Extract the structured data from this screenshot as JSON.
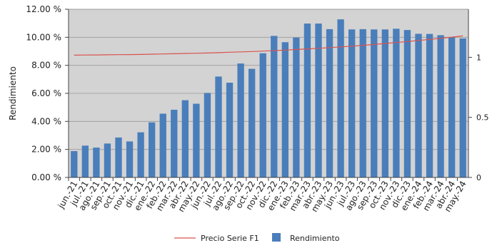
{
  "chart_data": {
    "type": "bar",
    "title": "",
    "xlabel": "",
    "ylabel": "Rendimiento",
    "y2label": "",
    "ylim": [
      0,
      12
    ],
    "y2lim": [
      0,
      1.4
    ],
    "yticks": [
      "0.00 %",
      "2.00 %",
      "4.00 %",
      "6.00 %",
      "8.00 %",
      "10.00 %",
      "12.00 %"
    ],
    "y2ticks": [
      "0",
      "0.5",
      "1"
    ],
    "plot_background": "#d3d3d3",
    "legend_position": "bottom",
    "categories": [
      "jun.-21",
      "jul.-21",
      "ago.-21",
      "sep.-21",
      "oct.-21",
      "nov.-21",
      "dic.-21",
      "ene.-22",
      "feb.-22",
      "mar.-22",
      "abr.-22",
      "may.-22",
      "jun.-22",
      "jul.-22",
      "ago.-22",
      "sep.-22",
      "oct.-22",
      "nov.-22",
      "dic.-22",
      "ene.-23",
      "feb.-23",
      "mar.-23",
      "abr.-23",
      "may.-23",
      "jun.-23",
      "jul.-23",
      "ago.-23",
      "sep.-23",
      "oct.-23",
      "nov.-23",
      "dic.-23",
      "ene.-24",
      "feb.-24",
      "mar.-24",
      "abr.-24",
      "may.-24"
    ],
    "series": [
      {
        "name": "Rendimiento",
        "type": "bar",
        "axis": "left",
        "color": "#4a7ebb",
        "values": [
          1.88,
          2.27,
          2.13,
          2.42,
          2.85,
          2.57,
          3.22,
          3.93,
          4.55,
          4.83,
          5.51,
          5.26,
          6.03,
          7.2,
          6.76,
          8.13,
          7.75,
          8.86,
          10.1,
          9.65,
          9.98,
          10.98,
          10.98,
          10.58,
          11.28,
          10.56,
          10.58,
          10.56,
          10.56,
          10.61,
          10.52,
          10.25,
          10.24,
          10.15,
          10.0,
          9.92
        ]
      },
      {
        "name": "Precio Serie F1",
        "type": "line",
        "axis": "right",
        "color": "#d9534f",
        "values": [
          1.018,
          1.019,
          1.02,
          1.021,
          1.022,
          1.023,
          1.024,
          1.026,
          1.028,
          1.03,
          1.032,
          1.034,
          1.036,
          1.039,
          1.042,
          1.045,
          1.048,
          1.052,
          1.056,
          1.06,
          1.065,
          1.07,
          1.075,
          1.081,
          1.087,
          1.093,
          1.1,
          1.107,
          1.115,
          1.123,
          1.131,
          1.14,
          1.149,
          1.158,
          1.168,
          1.178
        ]
      }
    ]
  }
}
